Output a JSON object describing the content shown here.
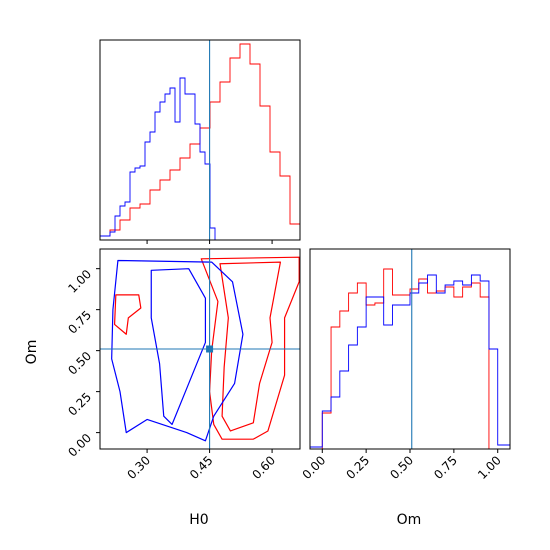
{
  "chart_data": [
    {
      "type": "histogram",
      "panel": "H0 marginal",
      "x_range": [
        0.187,
        0.667
      ],
      "truth": 0.45,
      "series": [
        {
          "color": "#ff0000",
          "bin_edges": [
            0.187,
            0.211,
            0.235,
            0.259,
            0.283,
            0.307,
            0.331,
            0.355,
            0.379,
            0.403,
            0.427,
            0.451,
            0.475,
            0.499,
            0.523,
            0.547,
            0.571,
            0.595,
            0.619,
            0.643,
            0.667
          ],
          "heights": [
            0.02,
            0.05,
            0.1,
            0.16,
            0.18,
            0.25,
            0.3,
            0.35,
            0.41,
            0.48,
            0.56,
            0.69,
            0.79,
            0.91,
            0.98,
            0.88,
            0.67,
            0.44,
            0.32,
            0.08
          ]
        },
        {
          "color": "#0000ff",
          "bin_edges": [
            0.187,
            0.199,
            0.211,
            0.223,
            0.235,
            0.247,
            0.259,
            0.271,
            0.283,
            0.295,
            0.307,
            0.319,
            0.331,
            0.343,
            0.355,
            0.367,
            0.379,
            0.391,
            0.403,
            0.415,
            0.427,
            0.439,
            0.451,
            0.463,
            0.475
          ],
          "heights": [
            0.02,
            0.02,
            0.04,
            0.12,
            0.17,
            0.19,
            0.34,
            0.36,
            0.37,
            0.49,
            0.54,
            0.64,
            0.69,
            0.73,
            0.76,
            0.59,
            0.81,
            0.73,
            0.73,
            0.58,
            0.44,
            0.38,
            0.06,
            0.0
          ]
        }
      ]
    },
    {
      "type": "contour",
      "panel": "H0 vs Om",
      "xlabel": "H0",
      "ylabel": "Om",
      "xlim": [
        0.187,
        0.667
      ],
      "ylim": [
        -0.1,
        1.12
      ],
      "xticks": [
        "0.30",
        "0.45",
        "0.60"
      ],
      "xtick_values": [
        0.3,
        0.45,
        0.6
      ],
      "yticks": [
        "0.00",
        "0.25",
        "0.50",
        "0.75",
        "1.00"
      ],
      "ytick_values": [
        0.0,
        0.25,
        0.5,
        0.75,
        1.0
      ],
      "truth": {
        "x": 0.45,
        "y": 0.51
      },
      "series": [
        {
          "color": "#ff0000",
          "contours": [
            [
              [
                0.43,
                1.06
              ],
              [
                0.665,
                1.07
              ],
              [
                0.665,
                0.92
              ],
              [
                0.63,
                0.7
              ],
              [
                0.63,
                0.35
              ],
              [
                0.59,
                0.01
              ],
              [
                0.555,
                -0.04
              ],
              [
                0.48,
                -0.04
              ],
              [
                0.46,
                0.05
              ],
              [
                0.45,
                0.25
              ],
              [
                0.455,
                0.5
              ],
              [
                0.47,
                0.8
              ],
              [
                0.43,
                1.06
              ]
            ],
            [
              [
                0.475,
                1.03
              ],
              [
                0.62,
                1.04
              ],
              [
                0.595,
                0.7
              ],
              [
                0.6,
                0.55
              ],
              [
                0.57,
                0.3
              ],
              [
                0.555,
                0.06
              ],
              [
                0.5,
                0.01
              ],
              [
                0.48,
                0.1
              ],
              [
                0.485,
                0.4
              ],
              [
                0.495,
                0.7
              ],
              [
                0.475,
                1.03
              ]
            ],
            [
              [
                0.225,
                0.84
              ],
              [
                0.28,
                0.84
              ],
              [
                0.285,
                0.76
              ],
              [
                0.255,
                0.7
              ],
              [
                0.25,
                0.6
              ],
              [
                0.222,
                0.66
              ],
              [
                0.225,
                0.84
              ]
            ]
          ]
        },
        {
          "color": "#0000ff",
          "contours": [
            [
              [
                0.23,
                1.05
              ],
              [
                0.455,
                1.04
              ],
              [
                0.505,
                0.92
              ],
              [
                0.53,
                0.6
              ],
              [
                0.51,
                0.3
              ],
              [
                0.46,
                0.1
              ],
              [
                0.44,
                -0.05
              ],
              [
                0.395,
                0.0
              ],
              [
                0.3,
                0.08
              ],
              [
                0.25,
                0.0
              ],
              [
                0.235,
                0.25
              ],
              [
                0.215,
                0.45
              ],
              [
                0.218,
                0.75
              ],
              [
                0.23,
                1.05
              ]
            ],
            [
              [
                0.31,
                0.99
              ],
              [
                0.4,
                1.0
              ],
              [
                0.44,
                0.82
              ],
              [
                0.44,
                0.55
              ],
              [
                0.4,
                0.3
              ],
              [
                0.36,
                0.05
              ],
              [
                0.34,
                0.1
              ],
              [
                0.33,
                0.42
              ],
              [
                0.31,
                0.7
              ],
              [
                0.31,
                0.99
              ]
            ]
          ]
        }
      ]
    },
    {
      "type": "histogram",
      "panel": "Om marginal",
      "xlabel": "Om",
      "x_range": [
        -0.07,
        1.07
      ],
      "xticks": [
        "0.00",
        "0.25",
        "0.50",
        "0.75",
        "1.00"
      ],
      "xtick_values": [
        0.0,
        0.25,
        0.5,
        0.75,
        1.0
      ],
      "truth": 0.51,
      "series": [
        {
          "color": "#ff0000",
          "bin_edges": [
            0.0,
            0.05,
            0.1,
            0.15,
            0.2,
            0.25,
            0.3,
            0.35,
            0.4,
            0.45,
            0.5,
            0.55,
            0.6,
            0.65,
            0.7,
            0.75,
            0.8,
            0.85,
            0.9,
            0.95,
            1.0
          ],
          "heights": [
            0.18,
            0.61,
            0.69,
            0.78,
            0.83,
            0.72,
            0.73,
            0.9,
            0.77,
            0.77,
            0.8,
            0.85,
            0.78,
            0.79,
            0.81,
            0.76,
            0.81,
            0.83,
            0.76,
            0.0
          ]
        },
        {
          "color": "#0000ff",
          "bin_edges": [
            -0.07,
            0.0,
            0.05,
            0.1,
            0.15,
            0.2,
            0.25,
            0.3,
            0.35,
            0.4,
            0.45,
            0.5,
            0.55,
            0.6,
            0.65,
            0.7,
            0.75,
            0.8,
            0.85,
            0.9,
            0.95,
            1.0,
            1.07
          ],
          "heights": [
            0.01,
            0.19,
            0.26,
            0.39,
            0.52,
            0.61,
            0.76,
            0.76,
            0.62,
            0.72,
            0.72,
            0.78,
            0.83,
            0.87,
            0.78,
            0.82,
            0.84,
            0.82,
            0.87,
            0.84,
            0.5,
            0.02
          ]
        }
      ]
    }
  ]
}
